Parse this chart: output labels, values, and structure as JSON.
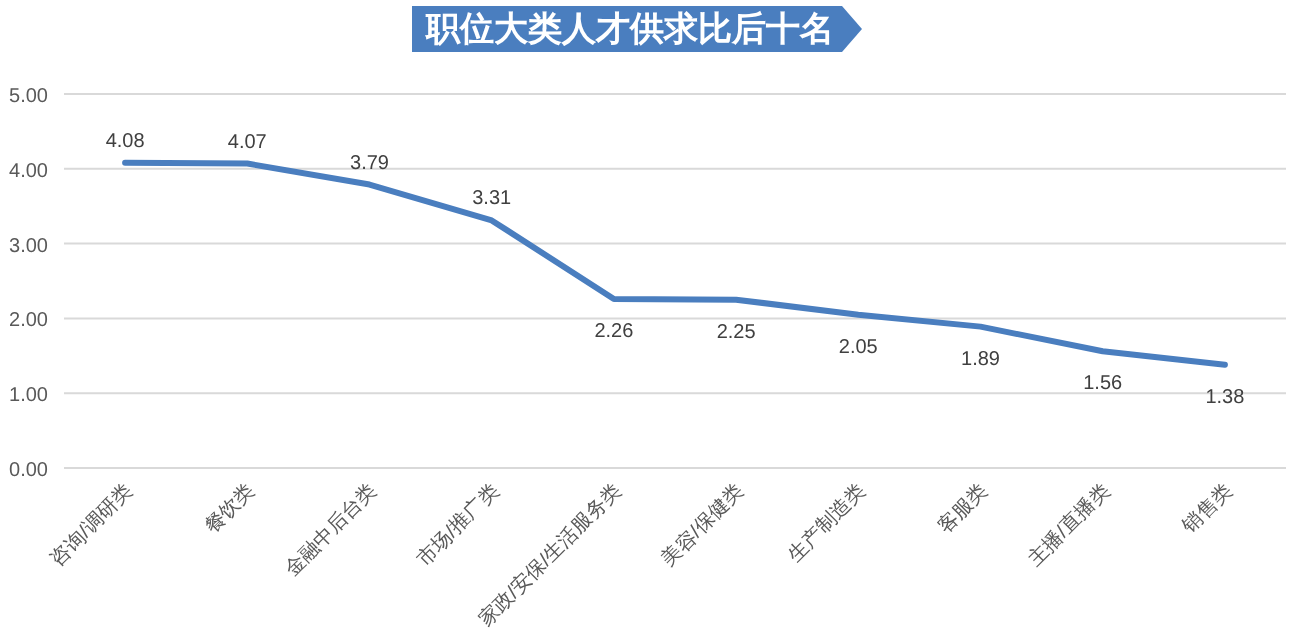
{
  "chart_data": {
    "type": "line",
    "title": "职位大类人才供求比后十名",
    "categories": [
      "咨询/调研类",
      "餐饮类",
      "金融中后台类",
      "市场/推广类",
      "家政/安保/生活服务类",
      "美容/保健类",
      "生产制造类",
      "客服类",
      "主播/直播类",
      "销售类"
    ],
    "series": [
      {
        "color": "#4a7ebf",
        "values": [
          4.08,
          4.07,
          3.79,
          3.31,
          2.26,
          2.25,
          2.05,
          1.89,
          1.56,
          1.38
        ]
      }
    ],
    "ylim": [
      0,
      5
    ],
    "yticks": [
      {
        "value": 0,
        "label": "0.00"
      },
      {
        "value": 1,
        "label": "1.00"
      },
      {
        "value": 2,
        "label": "2.00"
      },
      {
        "value": 3,
        "label": "3.00"
      },
      {
        "value": 4,
        "label": "4.00"
      },
      {
        "value": 5,
        "label": "5.00"
      }
    ],
    "grid": "y",
    "data_labels": true,
    "marker": "none",
    "line_style": "solid"
  }
}
